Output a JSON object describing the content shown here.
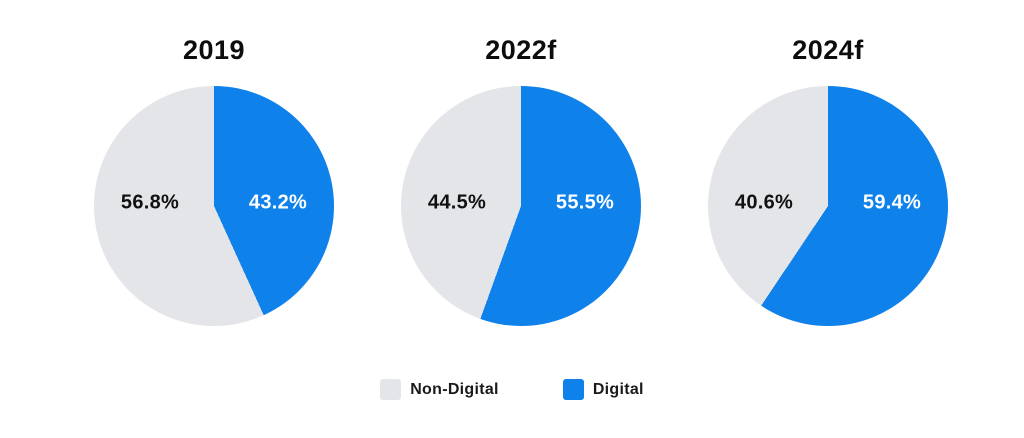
{
  "page": {
    "background": "#ffffff"
  },
  "chart_data": [
    {
      "type": "pie",
      "title": "2019",
      "start_angle_deg": 0,
      "direction": "clockwise",
      "slices": [
        {
          "label": "Digital",
          "value": 43.2,
          "value_label": "43.2%",
          "color": "#0f81ea"
        },
        {
          "label": "Non-Digital",
          "value": 56.8,
          "value_label": "56.8%",
          "color": "#e4e5e9"
        }
      ]
    },
    {
      "type": "pie",
      "title": "2022f",
      "start_angle_deg": 0,
      "direction": "clockwise",
      "slices": [
        {
          "label": "Digital",
          "value": 55.5,
          "value_label": "55.5%",
          "color": "#0f81ea"
        },
        {
          "label": "Non-Digital",
          "value": 44.5,
          "value_label": "44.5%",
          "color": "#e4e5e9"
        }
      ]
    },
    {
      "type": "pie",
      "title": "2024f",
      "start_angle_deg": 0,
      "direction": "clockwise",
      "slices": [
        {
          "label": "Digital",
          "value": 59.4,
          "value_label": "59.4%",
          "color": "#0f81ea"
        },
        {
          "label": "Non-Digital",
          "value": 40.6,
          "value_label": "40.6%",
          "color": "#e4e5e9"
        }
      ]
    }
  ],
  "legend": {
    "items": [
      {
        "label": "Non-Digital",
        "color": "#e4e5e9"
      },
      {
        "label": "Digital",
        "color": "#0f81ea"
      }
    ]
  }
}
